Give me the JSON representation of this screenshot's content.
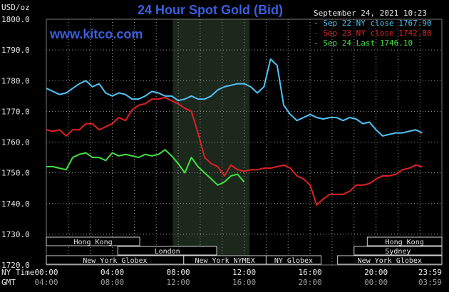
{
  "title": "24 Hour Spot Gold (Bid)",
  "y_unit": "USD/oz",
  "website": "www.kitco.com",
  "timestamp": "September 24, 2021 10:23",
  "colors": {
    "background": "#000000",
    "grid": "#9a9a9a",
    "title": "#3a5fe0",
    "highlight": "#1c281c",
    "session_border": "#b03030",
    "session_fill": "#000000"
  },
  "row_labels": {
    "ny_time": "NY Time",
    "gmt": "GMT"
  },
  "sessions": [
    {
      "label": "Hong Kong",
      "start": 0,
      "end": 8.5,
      "row": 0
    },
    {
      "label": "London",
      "start": 6.5,
      "end": 15.5,
      "row": 1
    },
    {
      "label": "New York Globex",
      "start": 0,
      "end": 12.5,
      "row": 2
    },
    {
      "label": "New York NYMEX",
      "start": 12.5,
      "end": 20.0,
      "row": 2
    },
    {
      "label": "NY Globex",
      "start": 20.0,
      "end": 25.0,
      "row": 2
    },
    {
      "label": "Hong Kong",
      "start": 29.2,
      "end": 35.99,
      "row": 0
    },
    {
      "label": "Sydney",
      "start": 28.0,
      "end": 35.99,
      "row": 1
    },
    {
      "label": "New York Globex",
      "start": 26.5,
      "end": 35.99,
      "row": 2
    }
  ],
  "chart_data": {
    "type": "line",
    "title": "24 Hour Spot Gold (Bid)",
    "ylabel": "USD/oz",
    "ylim": [
      1720,
      1800
    ],
    "yticks": [
      "1720.0",
      "1730.0",
      "1740.0",
      "1750.0",
      "1760.0",
      "1770.0",
      "1780.0",
      "1790.0",
      "1800.0"
    ],
    "xlim_hours": [
      0,
      35.99
    ],
    "x_ny_time": [
      "00:00",
      "04:00",
      "08:00",
      "12:00",
      "16:00",
      "20:00",
      "23:59"
    ],
    "x_gmt": [
      "04:00",
      "08:00",
      "12:00",
      "16:00",
      "20:00",
      "00:00",
      "03:59"
    ],
    "highlight_hours": [
      11.5,
      18.5
    ],
    "grid": true,
    "legend_position": "top-right",
    "series": [
      {
        "name": "Sep 22 NY close",
        "last": "1767.90",
        "color": "#4fc3f7",
        "points": [
          [
            0,
            1777.5
          ],
          [
            1,
            1776.5
          ],
          [
            2,
            1775.5
          ],
          [
            3,
            1776
          ],
          [
            4,
            1777.5
          ],
          [
            5,
            1779
          ],
          [
            6,
            1780
          ],
          [
            7,
            1778
          ],
          [
            8,
            1779
          ],
          [
            9,
            1776
          ],
          [
            10,
            1775
          ],
          [
            11,
            1776
          ],
          [
            12,
            1775.5
          ],
          [
            13,
            1774
          ],
          [
            14,
            1774
          ],
          [
            15,
            1775
          ],
          [
            16,
            1776.5
          ],
          [
            17,
            1776
          ],
          [
            18,
            1775
          ],
          [
            19,
            1775
          ],
          [
            20,
            1773.5
          ],
          [
            21,
            1774
          ],
          [
            22,
            1775
          ],
          [
            23,
            1774
          ],
          [
            24,
            1774
          ],
          [
            25,
            1775
          ],
          [
            26,
            1777
          ],
          [
            27,
            1778
          ],
          [
            28,
            1778.5
          ],
          [
            29,
            1779
          ],
          [
            30,
            1779
          ],
          [
            31,
            1778
          ],
          [
            32,
            1776
          ],
          [
            33,
            1778
          ],
          [
            34,
            1787
          ],
          [
            35,
            1785
          ],
          [
            36,
            1772
          ],
          [
            37,
            1769
          ],
          [
            38,
            1767
          ],
          [
            39,
            1768
          ],
          [
            40,
            1769
          ],
          [
            41,
            1768
          ],
          [
            42,
            1767.5
          ],
          [
            43,
            1768
          ],
          [
            44,
            1768
          ],
          [
            45,
            1767
          ],
          [
            46,
            1768
          ],
          [
            47,
            1767.5
          ],
          [
            48,
            1766
          ],
          [
            49,
            1766.5
          ],
          [
            50,
            1764
          ],
          [
            51,
            1762
          ],
          [
            52,
            1762.5
          ],
          [
            53,
            1763
          ],
          [
            54,
            1763
          ],
          [
            55,
            1763.5
          ],
          [
            56,
            1764
          ],
          [
            57,
            1763
          ]
        ]
      },
      {
        "name": "Sep 23 NY close",
        "last": "1742.80",
        "color": "#e02020",
        "points": [
          [
            0,
            1764
          ],
          [
            1,
            1763.5
          ],
          [
            2,
            1764
          ],
          [
            3,
            1762
          ],
          [
            4,
            1764
          ],
          [
            5,
            1764
          ],
          [
            6,
            1766
          ],
          [
            7,
            1766
          ],
          [
            8,
            1764
          ],
          [
            9,
            1765
          ],
          [
            10,
            1766
          ],
          [
            11,
            1768
          ],
          [
            12,
            1767
          ],
          [
            13,
            1770.5
          ],
          [
            14,
            1772
          ],
          [
            15,
            1772.5
          ],
          [
            16,
            1774
          ],
          [
            17,
            1774
          ],
          [
            18,
            1774.5
          ],
          [
            19,
            1773.5
          ],
          [
            20,
            1772.5
          ],
          [
            21,
            1771
          ],
          [
            22,
            1770
          ],
          [
            23,
            1763
          ],
          [
            24,
            1755
          ],
          [
            25,
            1753
          ],
          [
            26,
            1752
          ],
          [
            27,
            1749
          ],
          [
            28,
            1752.5
          ],
          [
            29,
            1751
          ],
          [
            30,
            1750.5
          ],
          [
            31,
            1751
          ],
          [
            32,
            1751
          ],
          [
            33,
            1751.5
          ],
          [
            34,
            1751.5
          ],
          [
            35,
            1752
          ],
          [
            36,
            1752.5
          ],
          [
            37,
            1751.5
          ],
          [
            38,
            1749
          ],
          [
            39,
            1748
          ],
          [
            40,
            1746
          ],
          [
            41,
            1739.5
          ],
          [
            42,
            1741.5
          ],
          [
            43,
            1743
          ],
          [
            44,
            1743
          ],
          [
            45,
            1743
          ],
          [
            46,
            1744
          ],
          [
            47,
            1746
          ],
          [
            48,
            1746
          ],
          [
            49,
            1746.5
          ],
          [
            50,
            1748
          ],
          [
            51,
            1749
          ],
          [
            52,
            1749
          ],
          [
            53,
            1749.5
          ],
          [
            54,
            1751
          ],
          [
            55,
            1751.5
          ],
          [
            56,
            1752.5
          ],
          [
            57,
            1752
          ]
        ]
      },
      {
        "name": "Sep 24 Last",
        "last": "1746.10",
        "color": "#40e040",
        "points": [
          [
            0,
            1752
          ],
          [
            1,
            1752
          ],
          [
            2,
            1751.5
          ],
          [
            3,
            1751
          ],
          [
            4,
            1755
          ],
          [
            5,
            1756
          ],
          [
            6,
            1756.5
          ],
          [
            7,
            1755
          ],
          [
            8,
            1755
          ],
          [
            9,
            1754
          ],
          [
            10,
            1756.5
          ],
          [
            11,
            1755.5
          ],
          [
            12,
            1756
          ],
          [
            13,
            1755.5
          ],
          [
            14,
            1755
          ],
          [
            15,
            1756
          ],
          [
            16,
            1755.5
          ],
          [
            17,
            1756
          ],
          [
            18,
            1757.5
          ],
          [
            19,
            1755.5
          ],
          [
            20,
            1753
          ],
          [
            21,
            1750
          ],
          [
            22,
            1755
          ],
          [
            23,
            1752
          ],
          [
            24,
            1750
          ],
          [
            25,
            1748
          ],
          [
            26,
            1746
          ],
          [
            27,
            1747
          ],
          [
            28,
            1749
          ],
          [
            29,
            1749.5
          ],
          [
            30,
            1747
          ]
        ]
      }
    ]
  }
}
